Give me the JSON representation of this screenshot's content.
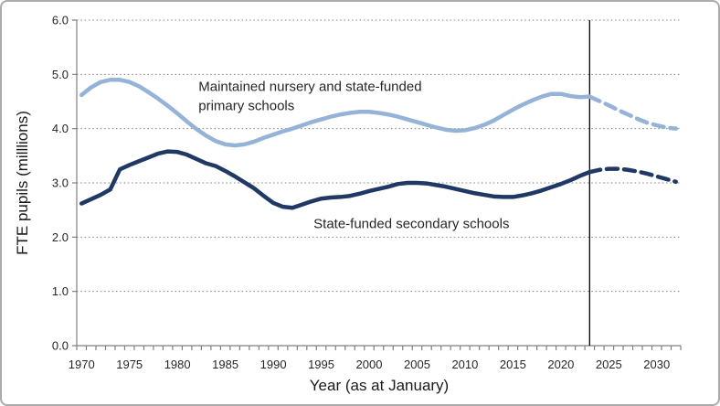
{
  "chart_data": {
    "type": "line",
    "title": "",
    "xlabel": "Year (as at January)",
    "ylabel": "FTE pupils (milllions)",
    "ylim": [
      0.0,
      6.0
    ],
    "y_tick_step": 1.0,
    "y_tick_labels": [
      "0.0",
      "1.0",
      "2.0",
      "3.0",
      "4.0",
      "5.0",
      "6.0"
    ],
    "x_range": [
      1970,
      2032
    ],
    "x_tick_labels": [
      "1970",
      "1975",
      "1980",
      "1985",
      "1990",
      "1995",
      "2000",
      "2005",
      "2010",
      "2015",
      "2020",
      "2025",
      "2030"
    ],
    "grid": "horizontal dotted lines at 1.0 intervals",
    "legend_position": "none (inline text annotations)",
    "projection_divider_year": 2023,
    "x_actual": [
      1970,
      1971,
      1972,
      1973,
      1974,
      1975,
      1976,
      1977,
      1978,
      1979,
      1980,
      1981,
      1982,
      1983,
      1984,
      1985,
      1986,
      1987,
      1988,
      1989,
      1990,
      1991,
      1992,
      1993,
      1994,
      1995,
      1996,
      1997,
      1998,
      1999,
      2000,
      2001,
      2002,
      2003,
      2004,
      2005,
      2006,
      2007,
      2008,
      2009,
      2010,
      2011,
      2012,
      2013,
      2014,
      2015,
      2016,
      2017,
      2018,
      2019,
      2020,
      2021,
      2022,
      2023
    ],
    "x_projected": [
      2023,
      2024,
      2025,
      2026,
      2027,
      2028,
      2029,
      2030,
      2031,
      2032
    ],
    "series": [
      {
        "id": "primary",
        "name": "Maintained nursery and state-funded primary schools",
        "color": "#95B3D7",
        "actual_values": [
          4.62,
          4.76,
          4.86,
          4.9,
          4.9,
          4.86,
          4.78,
          4.67,
          4.55,
          4.42,
          4.28,
          4.13,
          3.99,
          3.87,
          3.77,
          3.71,
          3.69,
          3.71,
          3.76,
          3.83,
          3.89,
          3.95,
          4.0,
          4.06,
          4.12,
          4.17,
          4.22,
          4.26,
          4.29,
          4.31,
          4.31,
          4.29,
          4.26,
          4.22,
          4.17,
          4.12,
          4.07,
          4.02,
          3.98,
          3.96,
          3.97,
          4.01,
          4.07,
          4.15,
          4.25,
          4.35,
          4.44,
          4.52,
          4.59,
          4.64,
          4.64,
          4.6,
          4.58,
          4.59
        ],
        "projected_values": [
          4.59,
          4.51,
          4.43,
          4.34,
          4.26,
          4.18,
          4.11,
          4.06,
          4.02,
          4.0
        ],
        "projected_style": "dashed"
      },
      {
        "id": "secondary",
        "name": "State-funded secondary schools",
        "color": "#1F3864",
        "actual_values": [
          2.62,
          2.7,
          2.78,
          2.88,
          3.25,
          3.33,
          3.4,
          3.47,
          3.54,
          3.58,
          3.57,
          3.52,
          3.44,
          3.36,
          3.31,
          3.22,
          3.12,
          3.01,
          2.9,
          2.76,
          2.63,
          2.56,
          2.54,
          2.6,
          2.66,
          2.71,
          2.73,
          2.74,
          2.76,
          2.8,
          2.85,
          2.89,
          2.93,
          2.98,
          3.0,
          3.0,
          2.99,
          2.96,
          2.93,
          2.89,
          2.85,
          2.81,
          2.78,
          2.75,
          2.74,
          2.74,
          2.77,
          2.81,
          2.86,
          2.92,
          2.98,
          3.05,
          3.13,
          3.2
        ],
        "projected_values": [
          3.2,
          3.24,
          3.26,
          3.26,
          3.24,
          3.21,
          3.17,
          3.12,
          3.07,
          3.02
        ],
        "projected_style": "dashed"
      }
    ],
    "annotations": [
      {
        "id": "primary-label",
        "lines": [
          "Maintained nursery and state-funded",
          "primary schools"
        ],
        "anchor_year": 1982.2,
        "anchor_value": 4.95
      },
      {
        "id": "secondary-label",
        "lines": [
          "State-funded secondary schools"
        ],
        "anchor_year": 1994.2,
        "anchor_value": 2.42
      }
    ]
  }
}
